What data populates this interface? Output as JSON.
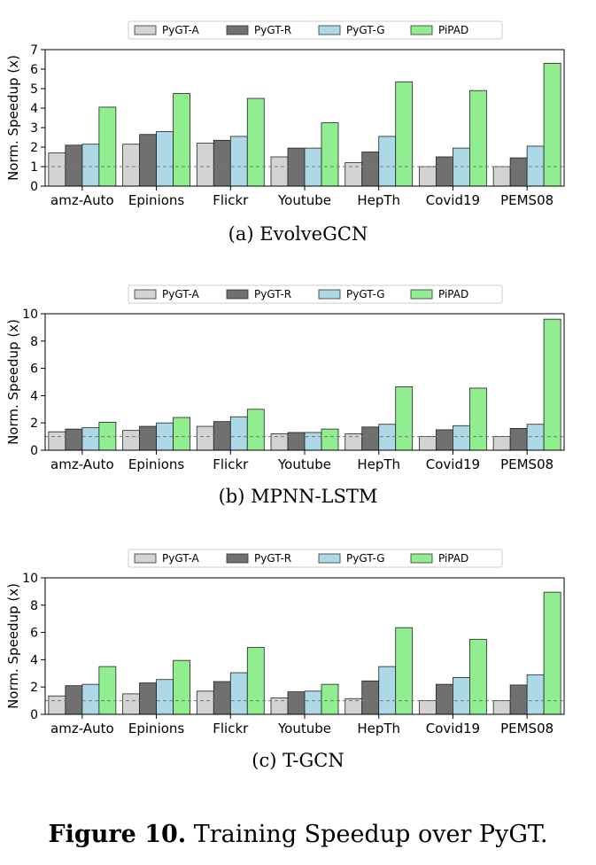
{
  "colors": {
    "PyGT-A": "#d3d3d3",
    "PyGT-R": "#707070",
    "PyGT-G": "#add8e6",
    "PiPAD": "#90ee90"
  },
  "chart_data": [
    {
      "type": "bar",
      "caption": "(a)  EvolveGCN",
      "ylabel": "Norm. Speedup (x)",
      "ylim": [
        0,
        7
      ],
      "yticks": [
        0,
        1,
        2,
        3,
        4,
        5,
        6,
        7
      ],
      "reference_line": 1,
      "legend": "top-center",
      "categories": [
        "amz-Auto",
        "Epinions",
        "Flickr",
        "Youtube",
        "HepTh",
        "Covid19",
        "PEMS08"
      ],
      "series": [
        {
          "name": "PyGT-A",
          "values": [
            1.7,
            2.15,
            2.2,
            1.5,
            1.2,
            1.0,
            1.0
          ]
        },
        {
          "name": "PyGT-R",
          "values": [
            2.1,
            2.65,
            2.35,
            1.95,
            1.75,
            1.5,
            1.45
          ]
        },
        {
          "name": "PyGT-G",
          "values": [
            2.15,
            2.8,
            2.55,
            1.95,
            2.55,
            1.95,
            2.05
          ]
        },
        {
          "name": "PiPAD",
          "values": [
            4.05,
            4.75,
            4.5,
            3.25,
            5.35,
            4.9,
            6.3
          ]
        }
      ]
    },
    {
      "type": "bar",
      "caption": "(b)  MPNN-LSTM",
      "ylabel": "Norm. Speedup (x)",
      "ylim": [
        0,
        10
      ],
      "yticks": [
        0,
        2,
        4,
        6,
        8,
        10
      ],
      "reference_line": 1,
      "legend": "top-center",
      "categories": [
        "amz-Auto",
        "Epinions",
        "Flickr",
        "Youtube",
        "HepTh",
        "Covid19",
        "PEMS08"
      ],
      "series": [
        {
          "name": "PyGT-A",
          "values": [
            1.35,
            1.45,
            1.75,
            1.2,
            1.2,
            1.0,
            1.0
          ]
        },
        {
          "name": "PyGT-R",
          "values": [
            1.55,
            1.75,
            2.1,
            1.3,
            1.7,
            1.5,
            1.6
          ]
        },
        {
          "name": "PyGT-G",
          "values": [
            1.65,
            2.0,
            2.45,
            1.3,
            1.9,
            1.8,
            1.9
          ]
        },
        {
          "name": "PiPAD",
          "values": [
            2.05,
            2.4,
            3.0,
            1.55,
            4.65,
            4.55,
            9.6
          ]
        }
      ]
    },
    {
      "type": "bar",
      "caption": "(c)  T-GCN",
      "ylabel": "Norm. Speedup (x)",
      "ylim": [
        0,
        10
      ],
      "yticks": [
        0,
        2,
        4,
        6,
        8,
        10
      ],
      "reference_line": 1,
      "legend": "top-center",
      "categories": [
        "amz-Auto",
        "Epinions",
        "Flickr",
        "Youtube",
        "HepTh",
        "Covid19",
        "PEMS08"
      ],
      "series": [
        {
          "name": "PyGT-A",
          "values": [
            1.35,
            1.5,
            1.7,
            1.2,
            1.15,
            1.0,
            1.0
          ]
        },
        {
          "name": "PyGT-R",
          "values": [
            2.1,
            2.3,
            2.4,
            1.65,
            2.45,
            2.2,
            2.15
          ]
        },
        {
          "name": "PyGT-G",
          "values": [
            2.2,
            2.55,
            3.05,
            1.7,
            3.5,
            2.7,
            2.9
          ]
        },
        {
          "name": "PiPAD",
          "values": [
            3.5,
            3.95,
            4.9,
            2.2,
            6.35,
            5.5,
            8.95
          ]
        }
      ]
    }
  ],
  "figure_caption": {
    "label": "Figure 10.",
    "text": " Training Speedup over PyGT."
  }
}
